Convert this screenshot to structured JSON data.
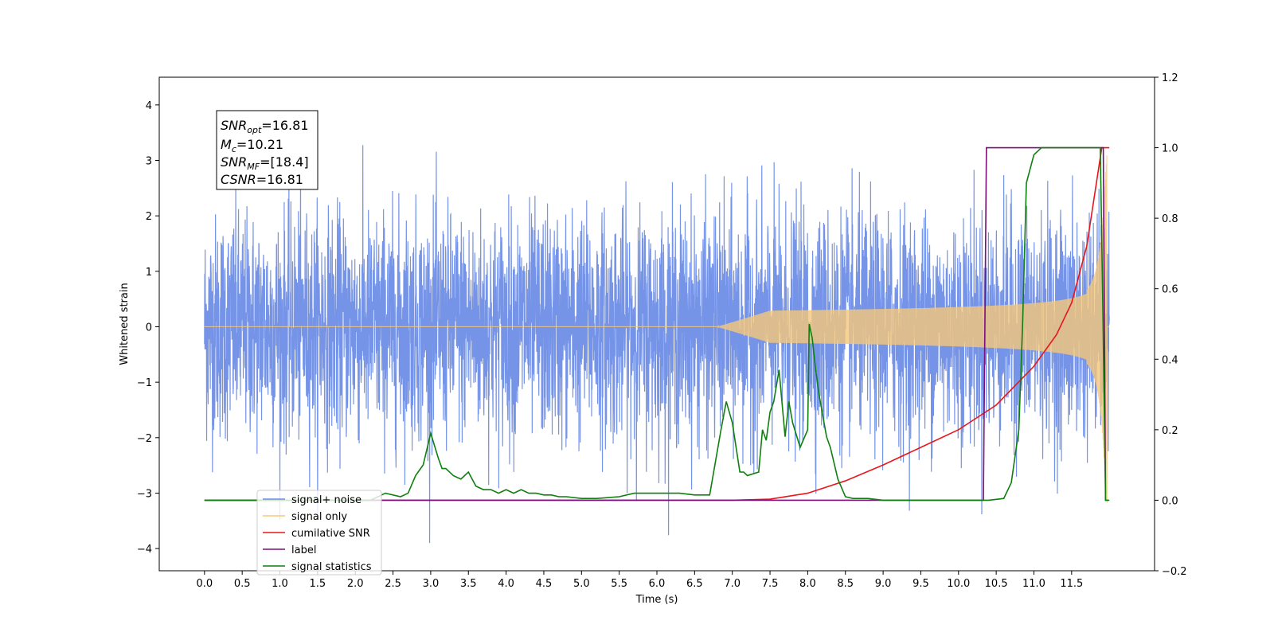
{
  "chart_data": {
    "type": "line",
    "xlabel": "Time (s)",
    "ylabel": "Whitened strain",
    "xlim": [
      -0.6,
      12.6
    ],
    "ylim": [
      -4.4,
      4.5
    ],
    "y2lim": [
      -0.2,
      1.2
    ],
    "x_ticks": [
      "0.0",
      "0.5",
      "1.0",
      "1.5",
      "2.0",
      "2.5",
      "3.0",
      "3.5",
      "4.0",
      "4.5",
      "5.0",
      "5.5",
      "6.0",
      "6.5",
      "7.0",
      "7.5",
      "8.0",
      "8.5",
      "9.0",
      "9.5",
      "10.0",
      "10.5",
      "11.0",
      "11.5"
    ],
    "x_tick_values": [
      0,
      0.5,
      1,
      1.5,
      2,
      2.5,
      3,
      3.5,
      4,
      4.5,
      5,
      5.5,
      6,
      6.5,
      7,
      7.5,
      8,
      8.5,
      9,
      9.5,
      10,
      10.5,
      11,
      11.5
    ],
    "y_ticks": [
      "4",
      "3",
      "2",
      "1",
      "0",
      "−1",
      "−2",
      "−3",
      "−4"
    ],
    "y_tick_values": [
      4,
      3,
      2,
      1,
      0,
      -1,
      -2,
      -3,
      -4
    ],
    "y2_ticks": [
      "1.2",
      "1.0",
      "0.8",
      "0.6",
      "0.4",
      "0.2",
      "0.0",
      "−0.2"
    ],
    "y2_tick_values": [
      1.2,
      1.0,
      0.8,
      0.6,
      0.4,
      0.2,
      0.0,
      -0.2
    ],
    "grid": false,
    "legend_position": "lower-left",
    "annotation": {
      "snr_opt": {
        "base": "SNR",
        "sub": "opt",
        "value": "=16.81"
      },
      "mc": {
        "base": "M",
        "sub": "c",
        "value": "=10.21"
      },
      "snr_mf": {
        "base": "SNR",
        "sub": "MF",
        "value": "=[18.4]"
      },
      "csnr": {
        "base": "CSNR",
        "value": "=16.81"
      }
    },
    "series": [
      {
        "name": "signal+ noise",
        "color": "#6f8ee6",
        "axis": "left",
        "style": "noise",
        "x_start": 0.0,
        "x_end": 12.0,
        "std": 1.0
      },
      {
        "name": "signal only",
        "color": "#f5c77a",
        "axis": "left",
        "style": "chirp",
        "x_start": 0.0,
        "x_end": 12.0,
        "amplitude_peak": 3.2
      },
      {
        "name": "cumilative SNR",
        "color": "#e8171b",
        "axis": "right",
        "x": [
          0,
          7.0,
          7.5,
          8.0,
          8.5,
          9.0,
          9.5,
          10.0,
          10.5,
          11.0,
          11.3,
          11.5,
          11.7,
          11.8,
          11.9,
          12.0
        ],
        "y": [
          0,
          0.0,
          0.003,
          0.02,
          0.055,
          0.1,
          0.15,
          0.2,
          0.27,
          0.38,
          0.47,
          0.56,
          0.72,
          0.86,
          1.0,
          1.0
        ]
      },
      {
        "name": "label",
        "color": "#7b0f7b",
        "axis": "right",
        "x": [
          0,
          10.33,
          10.37,
          11.92,
          11.95,
          11.98
        ],
        "y": [
          0,
          0,
          1,
          1,
          0,
          0
        ]
      },
      {
        "name": "signal statistics",
        "color": "#0f7f0f",
        "axis": "right",
        "x": [
          0,
          2.2,
          2.4,
          2.6,
          2.7,
          2.8,
          2.9,
          3.0,
          3.1,
          3.15,
          3.2,
          3.3,
          3.4,
          3.5,
          3.6,
          3.7,
          3.8,
          3.9,
          4.0,
          4.1,
          4.2,
          4.3,
          4.4,
          4.5,
          4.6,
          4.7,
          4.8,
          5.0,
          5.2,
          5.5,
          5.7,
          6.0,
          6.3,
          6.5,
          6.7,
          6.85,
          6.92,
          7.0,
          7.1,
          7.15,
          7.2,
          7.35,
          7.4,
          7.45,
          7.5,
          7.55,
          7.62,
          7.7,
          7.75,
          7.8,
          7.9,
          8.0,
          8.02,
          8.06,
          8.1,
          8.15,
          8.25,
          8.3,
          8.4,
          8.5,
          8.6,
          8.8,
          9.0,
          9.5,
          10.0,
          10.4,
          10.6,
          10.7,
          10.8,
          10.85,
          10.9,
          11.0,
          11.1,
          11.5,
          11.8,
          11.88,
          11.91,
          11.95,
          12.0
        ],
        "y": [
          0,
          0,
          0.02,
          0.01,
          0.02,
          0.07,
          0.1,
          0.19,
          0.12,
          0.09,
          0.09,
          0.07,
          0.06,
          0.08,
          0.04,
          0.03,
          0.03,
          0.02,
          0.03,
          0.02,
          0.03,
          0.02,
          0.02,
          0.015,
          0.015,
          0.01,
          0.01,
          0.005,
          0.005,
          0.01,
          0.02,
          0.02,
          0.02,
          0.015,
          0.015,
          0.2,
          0.28,
          0.22,
          0.08,
          0.08,
          0.07,
          0.08,
          0.2,
          0.17,
          0.25,
          0.28,
          0.37,
          0.18,
          0.28,
          0.22,
          0.15,
          0.2,
          0.5,
          0.46,
          0.38,
          0.3,
          0.18,
          0.15,
          0.06,
          0.01,
          0.005,
          0.005,
          0.0,
          0.0,
          0.0,
          0.0,
          0.005,
          0.05,
          0.2,
          0.5,
          0.9,
          0.98,
          1.0,
          1.0,
          1.0,
          1.0,
          0.6,
          0.0,
          0.0
        ]
      }
    ]
  }
}
